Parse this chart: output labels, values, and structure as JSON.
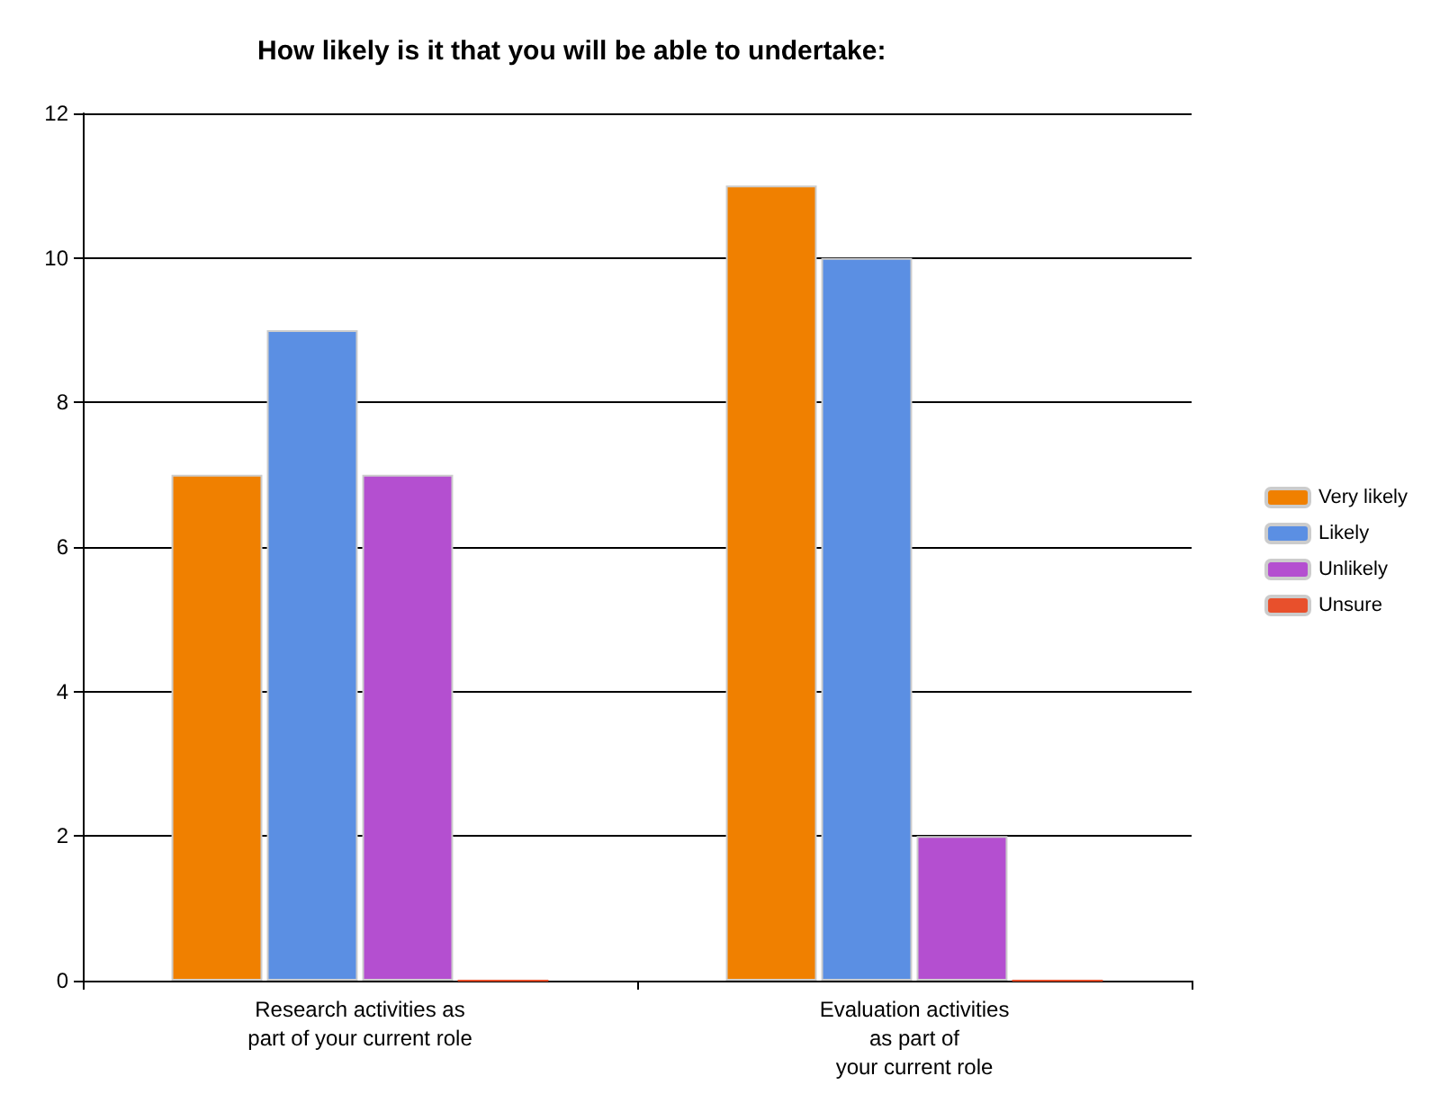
{
  "chart_data": {
    "type": "bar",
    "title": "How likely is it that you will be able to undertake:",
    "categories": [
      "Research activities as\npart of your current role",
      "Evaluation activities\nas part of\nyour current role"
    ],
    "series": [
      {
        "name": "Very likely",
        "color": "#f08000",
        "values": [
          7,
          11
        ]
      },
      {
        "name": "Likely",
        "color": "#5b8fe3",
        "values": [
          9,
          10
        ]
      },
      {
        "name": "Unlikely",
        "color": "#b44fd0",
        "values": [
          7,
          2
        ]
      },
      {
        "name": "Unsure",
        "color": "#e8502c",
        "values": [
          0,
          0
        ]
      }
    ],
    "ylim": [
      0,
      12
    ],
    "yticks": [
      0,
      2,
      4,
      6,
      8,
      10,
      12
    ],
    "grid": "y",
    "legend": "right"
  }
}
